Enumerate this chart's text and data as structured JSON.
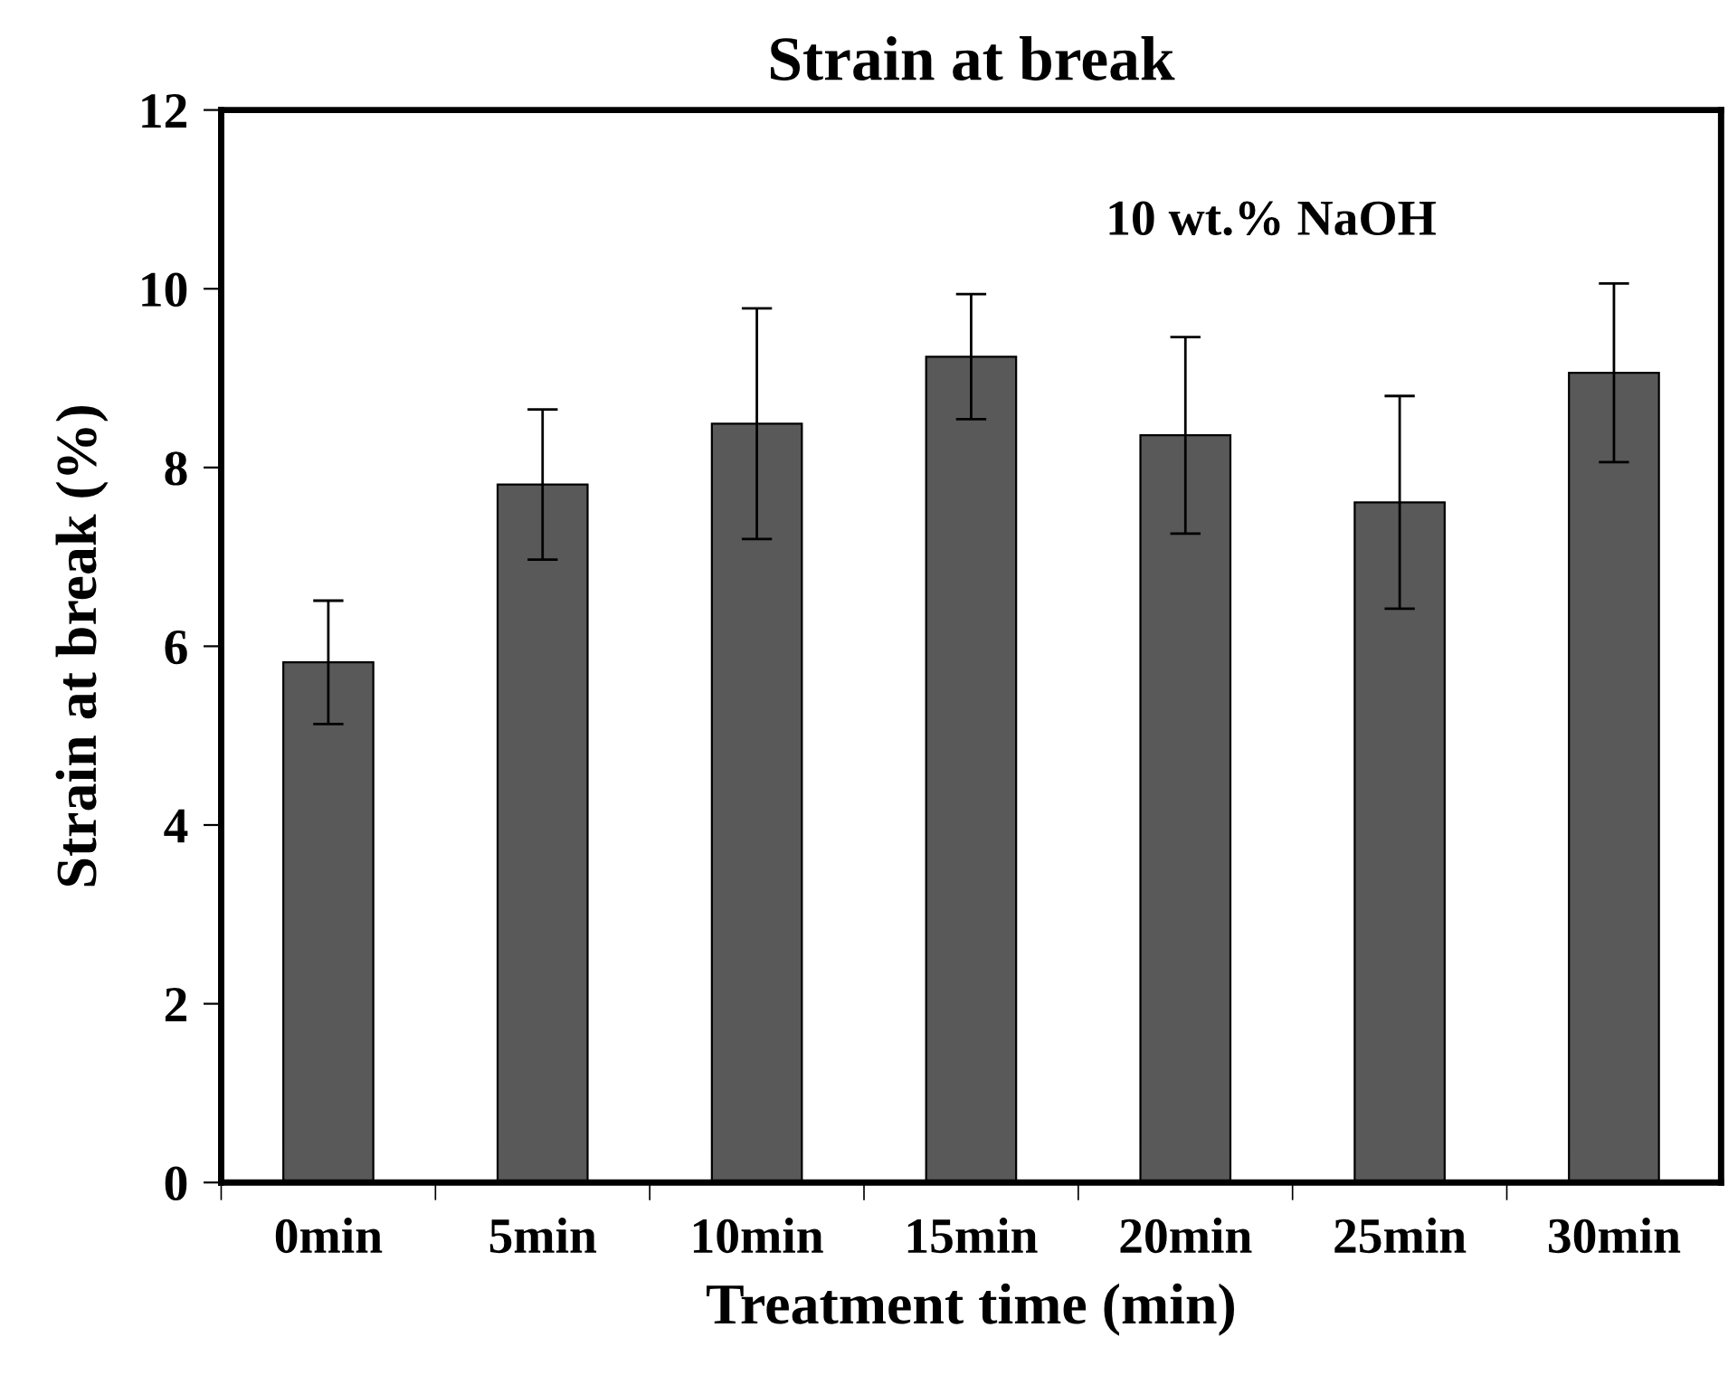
{
  "chart_data": {
    "type": "bar",
    "title": "Strain at break",
    "xlabel": "Treatment time (min)",
    "ylabel": "Strain at break (%)",
    "categories": [
      "0min",
      "5min",
      "10min",
      "15min",
      "20min",
      "25min",
      "30min"
    ],
    "values": [
      5.82,
      7.81,
      8.49,
      9.24,
      8.36,
      7.61,
      9.06
    ],
    "errors": [
      0.69,
      0.84,
      1.29,
      0.7,
      1.1,
      1.19,
      1.0
    ],
    "color": "#595959",
    "ylim": [
      0,
      12
    ],
    "yticks": [
      0,
      2,
      4,
      6,
      8,
      10,
      12
    ],
    "grid": false,
    "annotations": [
      "10 wt.% NaOH"
    ]
  }
}
